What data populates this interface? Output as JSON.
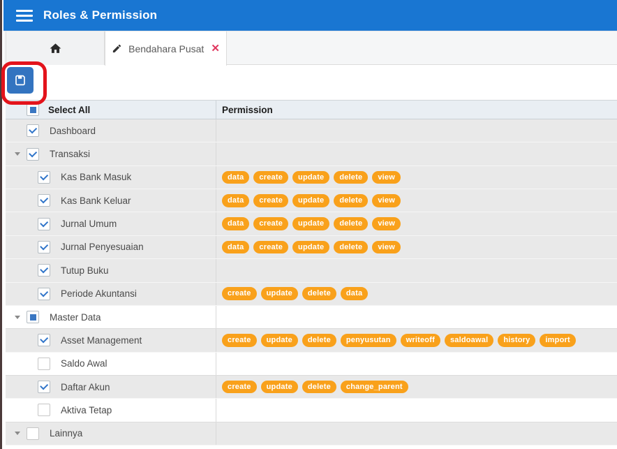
{
  "app": {
    "title": "Roles & Permission"
  },
  "tabs": {
    "home": {
      "icon": "home-icon"
    },
    "active": {
      "label": "Bendahara Pusat",
      "icon": "pencil-icon",
      "close": "✕"
    }
  },
  "toolbar": {
    "save_icon": "floppy-disk-icon"
  },
  "annotation": {
    "shape": "red-rounded-rectangle",
    "color": "#e3131b"
  },
  "table": {
    "header": {
      "select_all": "Select All",
      "permission": "Permission"
    },
    "rows": [
      {
        "label": "Dashboard",
        "level": 0,
        "state": "checked",
        "expander": false,
        "bg": "gray",
        "permissions": []
      },
      {
        "label": "Transaksi",
        "level": 0,
        "state": "checked",
        "expander": true,
        "bg": "gray",
        "permissions": []
      },
      {
        "label": "Kas Bank Masuk",
        "level": 1,
        "state": "checked",
        "expander": false,
        "bg": "gray",
        "permissions": [
          "data",
          "create",
          "update",
          "delete",
          "view"
        ]
      },
      {
        "label": "Kas Bank Keluar",
        "level": 1,
        "state": "checked",
        "expander": false,
        "bg": "gray",
        "permissions": [
          "data",
          "create",
          "update",
          "delete",
          "view"
        ]
      },
      {
        "label": "Jurnal Umum",
        "level": 1,
        "state": "checked",
        "expander": false,
        "bg": "gray",
        "permissions": [
          "data",
          "create",
          "update",
          "delete",
          "view"
        ]
      },
      {
        "label": "Jurnal Penyesuaian",
        "level": 1,
        "state": "checked",
        "expander": false,
        "bg": "gray",
        "permissions": [
          "data",
          "create",
          "update",
          "delete",
          "view"
        ]
      },
      {
        "label": "Tutup Buku",
        "level": 1,
        "state": "checked",
        "expander": false,
        "bg": "gray",
        "permissions": []
      },
      {
        "label": "Periode Akuntansi",
        "level": 1,
        "state": "checked",
        "expander": false,
        "bg": "gray",
        "permissions": [
          "create",
          "update",
          "delete",
          "data"
        ]
      },
      {
        "label": "Master Data",
        "level": 0,
        "state": "indeterminate",
        "expander": true,
        "bg": "white",
        "permissions": []
      },
      {
        "label": "Asset Management",
        "level": 1,
        "state": "checked",
        "expander": false,
        "bg": "gray",
        "permissions": [
          "create",
          "update",
          "delete",
          "penyusutan",
          "writeoff",
          "saldoawal",
          "history",
          "import"
        ]
      },
      {
        "label": "Saldo Awal",
        "level": 1,
        "state": "unchecked",
        "expander": false,
        "bg": "white",
        "permissions": []
      },
      {
        "label": "Daftar Akun",
        "level": 1,
        "state": "checked",
        "expander": false,
        "bg": "gray",
        "permissions": [
          "create",
          "update",
          "delete",
          "change_parent"
        ]
      },
      {
        "label": "Aktiva Tetap",
        "level": 1,
        "state": "unchecked",
        "expander": false,
        "bg": "white",
        "permissions": []
      },
      {
        "label": "Lainnya",
        "level": 0,
        "state": "unchecked",
        "expander": true,
        "bg": "gray",
        "permissions": []
      }
    ]
  },
  "colors": {
    "appbar_blue": "#1976d2",
    "save_button_blue": "#3374c0",
    "badge_orange": "#f9a11b",
    "annotation_red": "#e3131b",
    "row_gray": "#e9e9e9",
    "header_bg": "#e9eef3",
    "tab_close_red": "#e0365e"
  }
}
